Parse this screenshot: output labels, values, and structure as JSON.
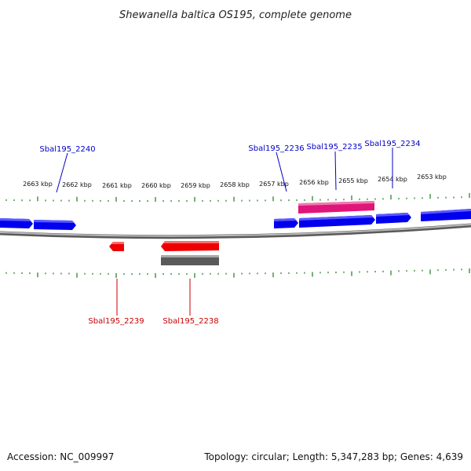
{
  "title": "Shewanella baltica OS195, complete genome",
  "footer": {
    "accession": "Accession: NC_009997",
    "topology": "Topology: circular; Length: 5,347,283 bp; Genes: 4,639"
  },
  "colors": {
    "forward_gene": "#0000ee",
    "reverse_gene": "#ee0000",
    "rna_feature": "#e0157a",
    "gray_feature": "#606060",
    "backbone": "#8a8a8a",
    "tick": "#1a7a1a"
  },
  "ticks": {
    "labels": [
      "2663 kbp",
      "2662 kbp",
      "2661 kbp",
      "2660 kbp",
      "2659 kbp",
      "2658 kbp",
      "2657 kbp",
      "2656 kbp",
      "2655 kbp",
      "2654 kbp",
      "2653 kbp"
    ]
  },
  "gene_labels": {
    "sbal2240": "Sbal195_2240",
    "sbal2236": "Sbal195_2236",
    "sbal2235": "Sbal195_2235",
    "sbal2234": "Sbal195_2234",
    "sbal2239": "Sbal195_2239",
    "sbal2238": "Sbal195_2238"
  }
}
